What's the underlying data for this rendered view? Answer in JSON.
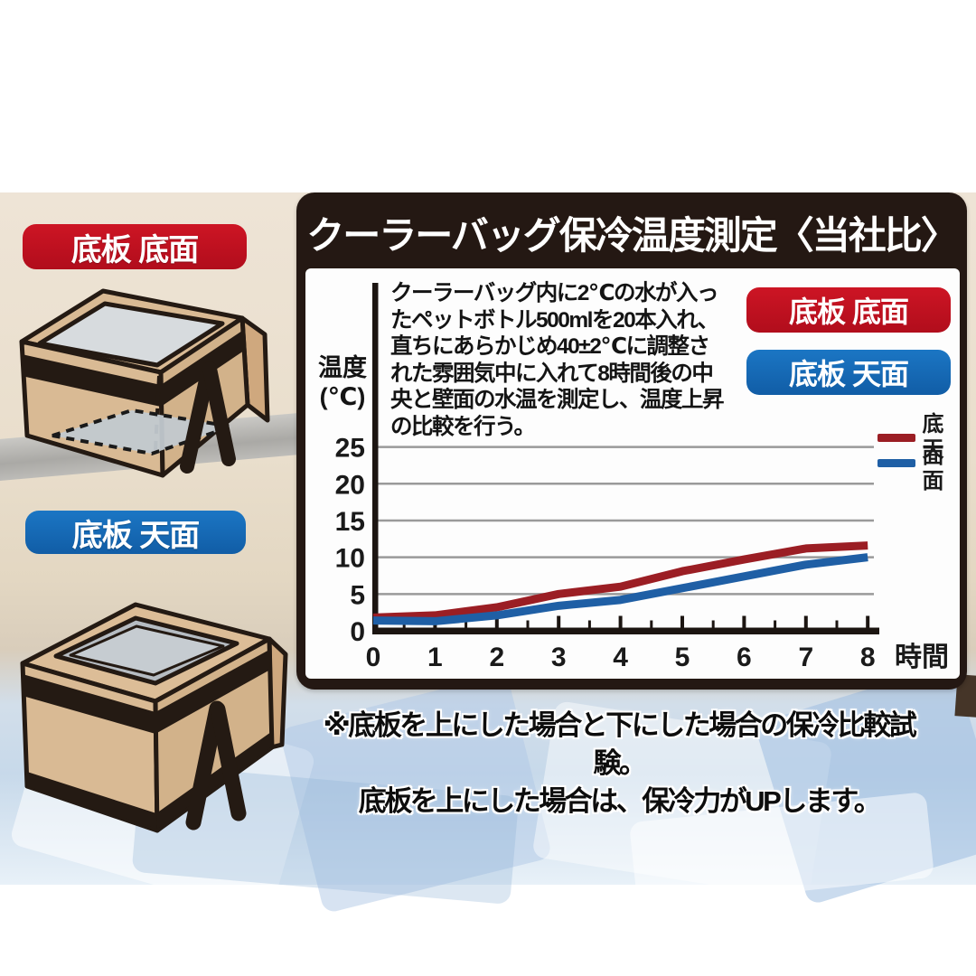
{
  "panel": {
    "title": "クーラーバッグ保冷温度測定〈当社比〉",
    "background": "#241813",
    "description_text": "クーラーバッグ内に2℃の水が入っ\nたペットボトル500mlを20本入れ、\n直ちにあらかじめ40±2℃に調整さ\nれた雰囲気中に入れて8時間後の中\n央と壁面の水温を測定し、温度上昇\nの比較を行う。",
    "badges": [
      {
        "label": "底板 底面",
        "color": "#c0101f"
      },
      {
        "label": "底板 天面",
        "color": "#1467b1"
      }
    ]
  },
  "left_column": {
    "badge_bottom_board_down": {
      "label": "底板 底面",
      "color": "#c0101f"
    },
    "badge_bottom_board_up": {
      "label": "底板 天面",
      "color": "#1467b1"
    },
    "illustrations": [
      "open-cooler-box-board-at-bottom",
      "cooler-box-board-on-top"
    ]
  },
  "footnote_text": "※底板を上にした場合と下にした場合の保冷比較試験。\n底板を上にした場合は、保冷力がUPします。",
  "chart_data": {
    "type": "line",
    "title": "クーラーバッグ保冷温度測定〈当社比〉",
    "xlabel": "時間",
    "ylabel": "温度\n(℃)",
    "x": [
      0,
      1,
      2,
      3,
      4,
      5,
      6,
      7,
      8
    ],
    "y_ticks": [
      0,
      5,
      10,
      15,
      20,
      25
    ],
    "x_minor_tick_step": 0.5,
    "xlim": [
      0,
      8
    ],
    "ylim": [
      0,
      27
    ],
    "grid": true,
    "legend_position": "right",
    "series": [
      {
        "name": "底面",
        "color": "#9b1e24",
        "values": [
          1.8,
          2.1,
          3.2,
          5.0,
          6.0,
          8.1,
          9.7,
          11.2,
          11.6
        ]
      },
      {
        "name": "天面",
        "color": "#1f5fa5",
        "values": [
          1.4,
          1.3,
          2.1,
          3.4,
          4.2,
          5.8,
          7.4,
          9.0,
          10.0
        ]
      }
    ]
  }
}
